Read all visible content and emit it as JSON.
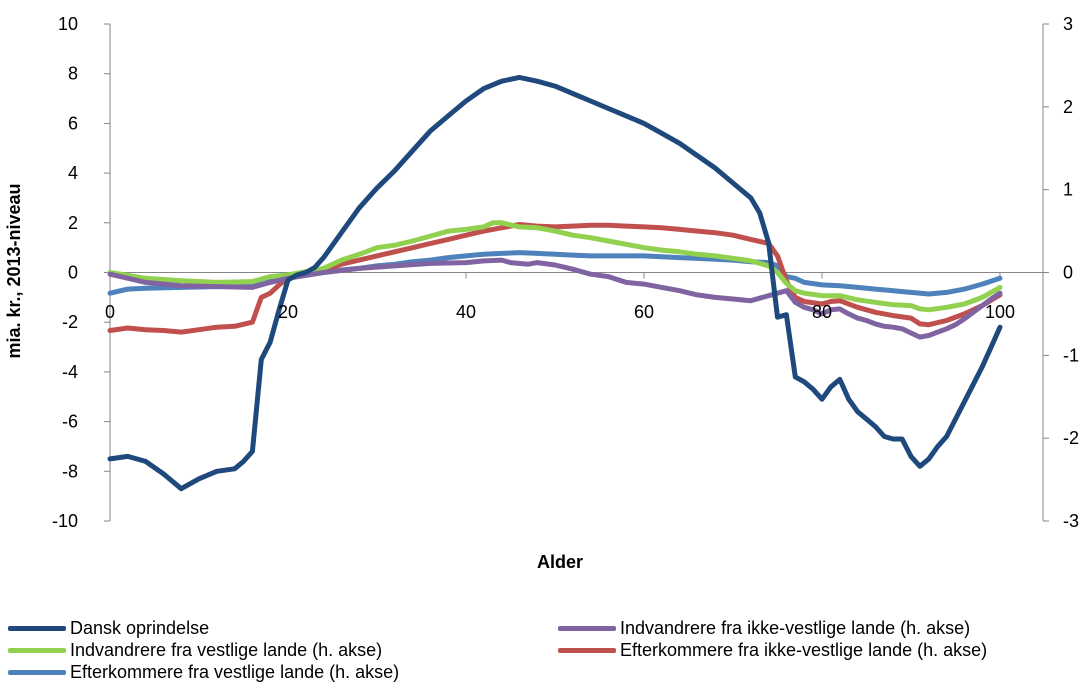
{
  "chart_data": {
    "type": "line",
    "xlabel": "Alder",
    "ylabel": "mia. kr., 2013-niveau",
    "xlim": [
      0,
      100
    ],
    "ylim_left": [
      -10,
      10
    ],
    "ylim_right": [
      -3,
      3
    ],
    "x_ticks": [
      "0",
      "20",
      "40",
      "60",
      "80",
      "100"
    ],
    "y_ticks_left": [
      "-10",
      "-8",
      "-6",
      "-4",
      "-2",
      "0",
      "2",
      "4",
      "6",
      "8",
      "10"
    ],
    "y_ticks_right": [
      "-3",
      "-2",
      "-1",
      "0",
      "1",
      "2",
      "3"
    ],
    "grid": false,
    "legend_position": "bottom",
    "series": [
      {
        "name": "Dansk oprindelse",
        "axis": "left",
        "color": "#1F497D",
        "points": [
          [
            0,
            -7.5
          ],
          [
            2,
            -7.4
          ],
          [
            4,
            -7.6
          ],
          [
            6,
            -8.1
          ],
          [
            8,
            -8.7
          ],
          [
            10,
            -8.3
          ],
          [
            12,
            -8.0
          ],
          [
            14,
            -7.9
          ],
          [
            15,
            -7.6
          ],
          [
            16,
            -7.2
          ],
          [
            17,
            -3.5
          ],
          [
            18,
            -2.8
          ],
          [
            19,
            -1.5
          ],
          [
            20,
            -0.3
          ],
          [
            21,
            -0.1
          ],
          [
            22,
            0.0
          ],
          [
            23,
            0.2
          ],
          [
            24,
            0.6
          ],
          [
            25,
            1.1
          ],
          [
            26,
            1.6
          ],
          [
            28,
            2.6
          ],
          [
            30,
            3.4
          ],
          [
            32,
            4.1
          ],
          [
            34,
            4.9
          ],
          [
            36,
            5.7
          ],
          [
            38,
            6.3
          ],
          [
            40,
            6.9
          ],
          [
            42,
            7.4
          ],
          [
            44,
            7.7
          ],
          [
            46,
            7.85
          ],
          [
            48,
            7.7
          ],
          [
            50,
            7.5
          ],
          [
            52,
            7.2
          ],
          [
            54,
            6.9
          ],
          [
            56,
            6.6
          ],
          [
            58,
            6.3
          ],
          [
            60,
            6.0
          ],
          [
            62,
            5.6
          ],
          [
            64,
            5.2
          ],
          [
            66,
            4.7
          ],
          [
            68,
            4.2
          ],
          [
            70,
            3.6
          ],
          [
            72,
            3.0
          ],
          [
            73,
            2.4
          ],
          [
            74,
            1.2
          ],
          [
            75,
            -1.8
          ],
          [
            76,
            -1.7
          ],
          [
            77,
            -4.2
          ],
          [
            78,
            -4.4
          ],
          [
            79,
            -4.7
          ],
          [
            80,
            -5.1
          ],
          [
            81,
            -4.6
          ],
          [
            82,
            -4.3
          ],
          [
            83,
            -5.1
          ],
          [
            84,
            -5.6
          ],
          [
            85,
            -5.9
          ],
          [
            86,
            -6.2
          ],
          [
            87,
            -6.6
          ],
          [
            88,
            -6.7
          ],
          [
            89,
            -6.7
          ],
          [
            90,
            -7.4
          ],
          [
            91,
            -7.8
          ],
          [
            92,
            -7.5
          ],
          [
            93,
            -7.0
          ],
          [
            94,
            -6.6
          ],
          [
            95,
            -5.9
          ],
          [
            96,
            -5.2
          ],
          [
            97,
            -4.5
          ],
          [
            98,
            -3.8
          ],
          [
            99,
            -3.0
          ],
          [
            100,
            -2.2
          ]
        ]
      },
      {
        "name": "Indvandrere fra ikke-vestlige lande (h. akse)",
        "axis": "right",
        "color": "#8064A2",
        "points": [
          [
            0,
            -0.02
          ],
          [
            4,
            -0.12
          ],
          [
            8,
            -0.16
          ],
          [
            12,
            -0.17
          ],
          [
            16,
            -0.18
          ],
          [
            18,
            -0.12
          ],
          [
            20,
            -0.07
          ],
          [
            24,
            0.0
          ],
          [
            28,
            0.05
          ],
          [
            32,
            0.08
          ],
          [
            36,
            0.11
          ],
          [
            40,
            0.12
          ],
          [
            42,
            0.14
          ],
          [
            44,
            0.15
          ],
          [
            45,
            0.12
          ],
          [
            47,
            0.1
          ],
          [
            48,
            0.12
          ],
          [
            50,
            0.09
          ],
          [
            52,
            0.04
          ],
          [
            54,
            -0.02
          ],
          [
            56,
            -0.05
          ],
          [
            58,
            -0.12
          ],
          [
            60,
            -0.14
          ],
          [
            62,
            -0.18
          ],
          [
            64,
            -0.22
          ],
          [
            66,
            -0.27
          ],
          [
            68,
            -0.3
          ],
          [
            70,
            -0.32
          ],
          [
            72,
            -0.34
          ],
          [
            74,
            -0.28
          ],
          [
            76,
            -0.22
          ],
          [
            77,
            -0.36
          ],
          [
            78,
            -0.42
          ],
          [
            79,
            -0.45
          ],
          [
            80,
            -0.5
          ],
          [
            81,
            -0.45
          ],
          [
            82,
            -0.44
          ],
          [
            83,
            -0.5
          ],
          [
            84,
            -0.55
          ],
          [
            85,
            -0.58
          ],
          [
            86,
            -0.62
          ],
          [
            87,
            -0.65
          ],
          [
            88,
            -0.66
          ],
          [
            89,
            -0.68
          ],
          [
            90,
            -0.73
          ],
          [
            91,
            -0.78
          ],
          [
            92,
            -0.76
          ],
          [
            93,
            -0.72
          ],
          [
            94,
            -0.68
          ],
          [
            95,
            -0.63
          ],
          [
            96,
            -0.56
          ],
          [
            97,
            -0.48
          ],
          [
            98,
            -0.4
          ],
          [
            99,
            -0.32
          ],
          [
            100,
            -0.25
          ]
        ]
      },
      {
        "name": "Indvandrere fra vestlige lande (h. akse)",
        "axis": "right",
        "color": "#92D050",
        "points": [
          [
            0,
            0.0
          ],
          [
            4,
            -0.07
          ],
          [
            8,
            -0.1
          ],
          [
            12,
            -0.12
          ],
          [
            16,
            -0.11
          ],
          [
            18,
            -0.05
          ],
          [
            20,
            -0.03
          ],
          [
            24,
            0.05
          ],
          [
            26,
            0.15
          ],
          [
            28,
            0.22
          ],
          [
            30,
            0.3
          ],
          [
            32,
            0.33
          ],
          [
            34,
            0.38
          ],
          [
            36,
            0.44
          ],
          [
            38,
            0.5
          ],
          [
            40,
            0.52
          ],
          [
            42,
            0.55
          ],
          [
            43,
            0.6
          ],
          [
            44,
            0.6
          ],
          [
            46,
            0.55
          ],
          [
            48,
            0.54
          ],
          [
            50,
            0.5
          ],
          [
            52,
            0.45
          ],
          [
            54,
            0.42
          ],
          [
            56,
            0.38
          ],
          [
            58,
            0.34
          ],
          [
            60,
            0.3
          ],
          [
            62,
            0.27
          ],
          [
            64,
            0.25
          ],
          [
            66,
            0.22
          ],
          [
            68,
            0.2
          ],
          [
            70,
            0.17
          ],
          [
            72,
            0.14
          ],
          [
            74,
            0.08
          ],
          [
            75,
            0.0
          ],
          [
            76,
            -0.13
          ],
          [
            77,
            -0.22
          ],
          [
            78,
            -0.25
          ],
          [
            80,
            -0.28
          ],
          [
            82,
            -0.28
          ],
          [
            84,
            -0.33
          ],
          [
            86,
            -0.36
          ],
          [
            88,
            -0.39
          ],
          [
            90,
            -0.4
          ],
          [
            91,
            -0.44
          ],
          [
            92,
            -0.45
          ],
          [
            94,
            -0.42
          ],
          [
            96,
            -0.38
          ],
          [
            98,
            -0.3
          ],
          [
            100,
            -0.18
          ]
        ]
      },
      {
        "name": "Efterkommere fra ikke-vestlige lande (h. akse)",
        "axis": "right",
        "color": "#C0504D",
        "points": [
          [
            0,
            -0.7
          ],
          [
            2,
            -0.67
          ],
          [
            4,
            -0.69
          ],
          [
            6,
            -0.7
          ],
          [
            8,
            -0.72
          ],
          [
            10,
            -0.69
          ],
          [
            12,
            -0.66
          ],
          [
            14,
            -0.65
          ],
          [
            16,
            -0.6
          ],
          [
            17,
            -0.3
          ],
          [
            18,
            -0.25
          ],
          [
            19,
            -0.15
          ],
          [
            20,
            -0.07
          ],
          [
            22,
            -0.02
          ],
          [
            24,
            0.03
          ],
          [
            26,
            0.1
          ],
          [
            28,
            0.15
          ],
          [
            30,
            0.2
          ],
          [
            32,
            0.25
          ],
          [
            34,
            0.3
          ],
          [
            36,
            0.35
          ],
          [
            38,
            0.4
          ],
          [
            40,
            0.45
          ],
          [
            42,
            0.5
          ],
          [
            44,
            0.54
          ],
          [
            46,
            0.58
          ],
          [
            48,
            0.56
          ],
          [
            50,
            0.55
          ],
          [
            52,
            0.56
          ],
          [
            54,
            0.57
          ],
          [
            56,
            0.57
          ],
          [
            58,
            0.56
          ],
          [
            60,
            0.55
          ],
          [
            62,
            0.54
          ],
          [
            64,
            0.52
          ],
          [
            66,
            0.5
          ],
          [
            68,
            0.48
          ],
          [
            70,
            0.45
          ],
          [
            72,
            0.4
          ],
          [
            74,
            0.35
          ],
          [
            75,
            0.2
          ],
          [
            76,
            -0.1
          ],
          [
            77,
            -0.3
          ],
          [
            78,
            -0.35
          ],
          [
            80,
            -0.38
          ],
          [
            81,
            -0.35
          ],
          [
            82,
            -0.34
          ],
          [
            84,
            -0.42
          ],
          [
            86,
            -0.48
          ],
          [
            88,
            -0.52
          ],
          [
            90,
            -0.55
          ],
          [
            91,
            -0.62
          ],
          [
            92,
            -0.63
          ],
          [
            94,
            -0.58
          ],
          [
            96,
            -0.5
          ],
          [
            98,
            -0.4
          ],
          [
            100,
            -0.27
          ]
        ]
      },
      {
        "name": "Efterkommere fra vestlige lande (h. akse)",
        "axis": "right",
        "color": "#4F81BD",
        "points": [
          [
            0,
            -0.25
          ],
          [
            2,
            -0.2
          ],
          [
            4,
            -0.19
          ],
          [
            8,
            -0.18
          ],
          [
            12,
            -0.17
          ],
          [
            16,
            -0.16
          ],
          [
            18,
            -0.1
          ],
          [
            20,
            -0.05
          ],
          [
            22,
            -0.02
          ],
          [
            24,
            0.0
          ],
          [
            26,
            0.03
          ],
          [
            28,
            0.05
          ],
          [
            30,
            0.08
          ],
          [
            32,
            0.1
          ],
          [
            34,
            0.13
          ],
          [
            36,
            0.15
          ],
          [
            38,
            0.18
          ],
          [
            40,
            0.2
          ],
          [
            42,
            0.22
          ],
          [
            44,
            0.23
          ],
          [
            46,
            0.24
          ],
          [
            48,
            0.23
          ],
          [
            50,
            0.22
          ],
          [
            52,
            0.21
          ],
          [
            54,
            0.2
          ],
          [
            56,
            0.2
          ],
          [
            58,
            0.2
          ],
          [
            60,
            0.2
          ],
          [
            62,
            0.19
          ],
          [
            64,
            0.18
          ],
          [
            66,
            0.17
          ],
          [
            68,
            0.16
          ],
          [
            70,
            0.15
          ],
          [
            72,
            0.13
          ],
          [
            74,
            0.12
          ],
          [
            75,
            0.08
          ],
          [
            76,
            -0.05
          ],
          [
            77,
            -0.07
          ],
          [
            78,
            -0.12
          ],
          [
            80,
            -0.15
          ],
          [
            82,
            -0.16
          ],
          [
            84,
            -0.18
          ],
          [
            86,
            -0.2
          ],
          [
            88,
            -0.22
          ],
          [
            90,
            -0.24
          ],
          [
            92,
            -0.26
          ],
          [
            94,
            -0.24
          ],
          [
            96,
            -0.2
          ],
          [
            98,
            -0.14
          ],
          [
            100,
            -0.07
          ]
        ]
      }
    ]
  }
}
